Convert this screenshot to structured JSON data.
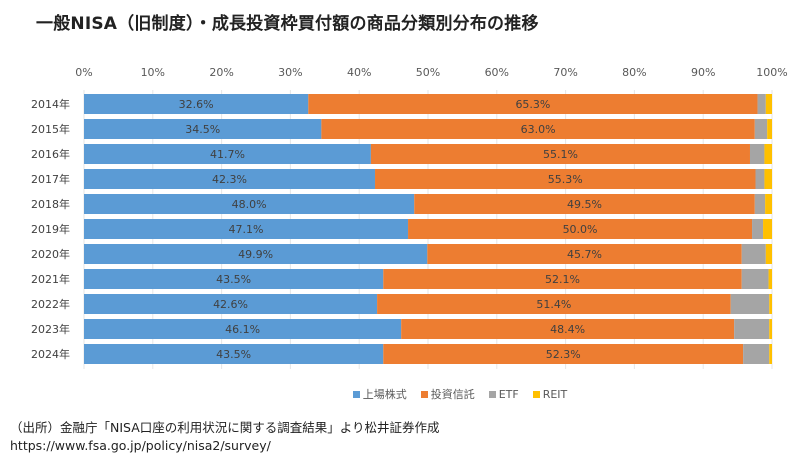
{
  "title": "一般NISA（旧制度）・成長投資枠買付額の商品分類別分布の推移",
  "chart_data": {
    "type": "bar",
    "orientation": "horizontal",
    "stacked": "percent",
    "title": "一般NISA（旧制度）・成長投資枠買付額の商品分類別分布の推移",
    "xlabel": "",
    "ylabel": "",
    "xlim": [
      0,
      100
    ],
    "x_ticks": [
      "0%",
      "10%",
      "20%",
      "30%",
      "40%",
      "50%",
      "60%",
      "70%",
      "80%",
      "90%",
      "100%"
    ],
    "grid": true,
    "legend_position": "bottom",
    "categories": [
      "2014年",
      "2015年",
      "2016年",
      "2017年",
      "2018年",
      "2019年",
      "2020年",
      "2021年",
      "2022年",
      "2023年",
      "2024年"
    ],
    "series": [
      {
        "name": "上場株式",
        "color": "#5B9BD5",
        "values": [
          32.6,
          34.5,
          41.7,
          42.3,
          48.0,
          47.1,
          49.9,
          43.5,
          42.6,
          46.1,
          43.5
        ],
        "labels": [
          "32.6%",
          "34.5%",
          "41.7%",
          "42.3%",
          "48.0%",
          "47.1%",
          "49.9%",
          "43.5%",
          "42.6%",
          "46.1%",
          "43.5%"
        ]
      },
      {
        "name": "投資信託",
        "color": "#ED7D31",
        "values": [
          65.3,
          63.0,
          55.1,
          55.3,
          49.5,
          50.0,
          45.7,
          52.1,
          51.4,
          48.4,
          52.3
        ],
        "labels": [
          "65.3%",
          "63.0%",
          "55.1%",
          "55.3%",
          "49.5%",
          "50.0%",
          "45.7%",
          "52.1%",
          "51.4%",
          "48.4%",
          "52.3%"
        ]
      },
      {
        "name": "ETF",
        "color": "#A5A5A5",
        "values": [
          1.2,
          1.8,
          2.1,
          1.3,
          1.5,
          1.6,
          3.5,
          3.9,
          5.6,
          5.1,
          3.8
        ]
      },
      {
        "name": "REIT",
        "color": "#FFC000",
        "values": [
          0.9,
          0.7,
          1.1,
          1.1,
          1.0,
          1.3,
          0.9,
          0.5,
          0.4,
          0.4,
          0.4
        ]
      }
    ]
  },
  "source": {
    "line1": "（出所）金融庁「NISA口座の利用状況に関する調査結果」より松井証券作成",
    "line2": "https://www.fsa.go.jp/policy/nisa2/survey/"
  }
}
